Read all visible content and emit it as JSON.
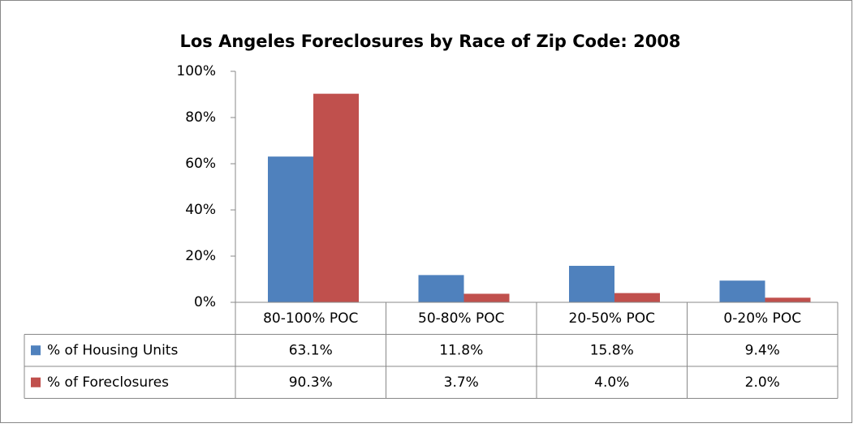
{
  "chart_data": {
    "type": "bar",
    "title": "Los Angeles Foreclosures by Race of Zip Code: 2008",
    "categories": [
      "80-100% POC",
      "50-80% POC",
      "20-50% POC",
      "0-20% POC"
    ],
    "series": [
      {
        "name": "% of Housing Units",
        "color": "#4f81bd",
        "values": [
          63.1,
          11.8,
          15.8,
          9.4
        ],
        "value_labels": [
          "63.1%",
          "11.8%",
          "15.8%",
          "9.4%"
        ]
      },
      {
        "name": "% of Foreclosures",
        "color": "#c0504d",
        "values": [
          90.3,
          3.7,
          4.0,
          2.0
        ],
        "value_labels": [
          "90.3%",
          "3.7%",
          "4.0%",
          "2.0%"
        ]
      }
    ],
    "ylim": [
      0,
      100
    ],
    "yticks": [
      {
        "value": 0,
        "label": "0%"
      },
      {
        "value": 20,
        "label": "20%"
      },
      {
        "value": 40,
        "label": "40%"
      },
      {
        "value": 60,
        "label": "60%"
      },
      {
        "value": 80,
        "label": "80%"
      },
      {
        "value": 100,
        "label": "100%"
      }
    ],
    "grid": false
  }
}
